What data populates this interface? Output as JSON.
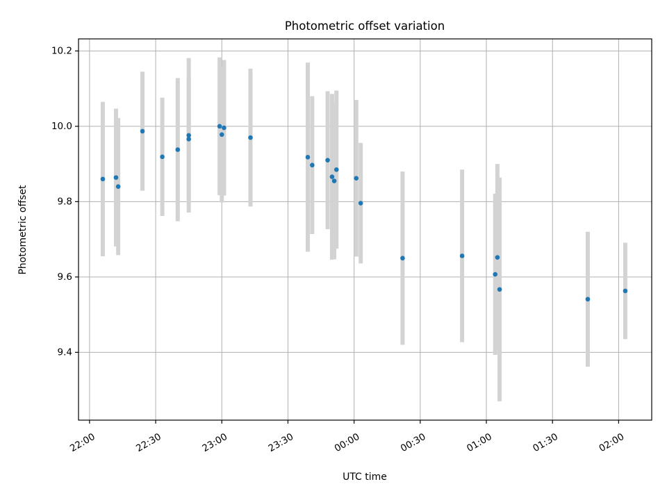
{
  "chart_data": {
    "type": "scatter",
    "title": "Photometric offset variation",
    "xlabel": "UTC time",
    "ylabel": "Photometric offset",
    "x_is_time": true,
    "xlim": [
      "21:55",
      "02:15"
    ],
    "ylim": [
      9.22,
      10.232
    ],
    "xticks": [
      "22:00",
      "22:30",
      "23:00",
      "23:30",
      "00:00",
      "00:30",
      "01:00",
      "01:30",
      "02:00"
    ],
    "yticks": [
      9.4,
      9.6,
      9.8,
      10.0,
      10.2
    ],
    "ytick_labels": [
      "9.4",
      "9.6",
      "9.8",
      "10.0",
      "10.2"
    ],
    "grid": true,
    "point_color": "#1f77b4",
    "errorbar_color": "#d3d3d3",
    "points": [
      {
        "x": "22:06",
        "y": 9.86,
        "err": 0.205
      },
      {
        "x": "22:12",
        "y": 9.864,
        "err": 0.183
      },
      {
        "x": "22:13",
        "y": 9.84,
        "err": 0.182
      },
      {
        "x": "22:24",
        "y": 9.987,
        "err": 0.158
      },
      {
        "x": "22:33",
        "y": 9.919,
        "err": 0.157
      },
      {
        "x": "22:40",
        "y": 9.938,
        "err": 0.19
      },
      {
        "x": "22:45",
        "y": 9.966,
        "err": 0.16
      },
      {
        "x": "22:45",
        "y": 9.976,
        "err": 0.205
      },
      {
        "x": "22:59",
        "y": 10.0,
        "err": 0.183
      },
      {
        "x": "23:00",
        "y": 9.978,
        "err": 0.18
      },
      {
        "x": "23:01",
        "y": 9.996,
        "err": 0.18
      },
      {
        "x": "23:13",
        "y": 9.97,
        "err": 0.183
      },
      {
        "x": "23:39",
        "y": 9.918,
        "err": 0.251
      },
      {
        "x": "23:41",
        "y": 9.897,
        "err": 0.183
      },
      {
        "x": "23:48",
        "y": 9.91,
        "err": 0.183
      },
      {
        "x": "23:50",
        "y": 9.866,
        "err": 0.22
      },
      {
        "x": "23:51",
        "y": 9.855,
        "err": 0.208
      },
      {
        "x": "23:52",
        "y": 9.885,
        "err": 0.21
      },
      {
        "x": "00:01",
        "y": 9.862,
        "err": 0.208
      },
      {
        "x": "00:03",
        "y": 9.796,
        "err": 0.16
      },
      {
        "x": "00:22",
        "y": 9.65,
        "err": 0.23
      },
      {
        "x": "00:49",
        "y": 9.656,
        "err": 0.229
      },
      {
        "x": "01:04",
        "y": 9.607,
        "err": 0.214
      },
      {
        "x": "01:05",
        "y": 9.652,
        "err": 0.248
      },
      {
        "x": "01:06",
        "y": 9.567,
        "err": 0.297
      },
      {
        "x": "01:46",
        "y": 9.541,
        "err": 0.179
      },
      {
        "x": "02:03",
        "y": 9.563,
        "err": 0.128
      }
    ]
  }
}
